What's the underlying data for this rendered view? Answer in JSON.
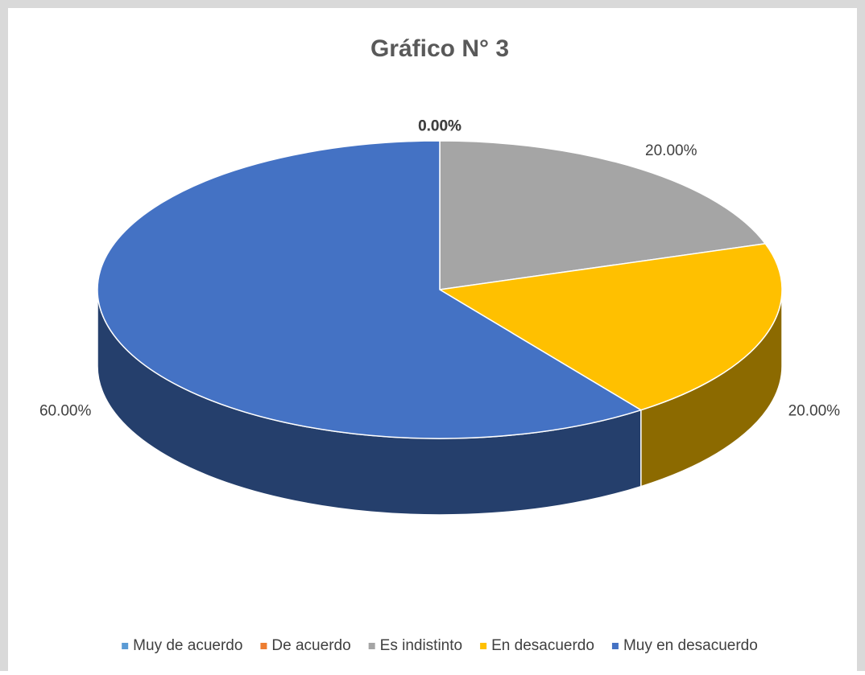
{
  "chart_data": {
    "type": "pie",
    "title": "Gráfico N° 3",
    "categories": [
      "Muy de acuerdo",
      "De acuerdo",
      "Es indistinto",
      "En desacuerdo",
      "Muy en desacuerdo"
    ],
    "values": [
      0,
      0,
      20,
      20,
      60
    ],
    "value_labels": [
      "0.00%",
      "0.00%",
      "20.00%",
      "20.00%",
      "60.00%"
    ],
    "colors": [
      "#5b9bd5",
      "#ed7d31",
      "#a5a5a5",
      "#ffc000",
      "#4472c4"
    ],
    "legend": "bottom"
  }
}
